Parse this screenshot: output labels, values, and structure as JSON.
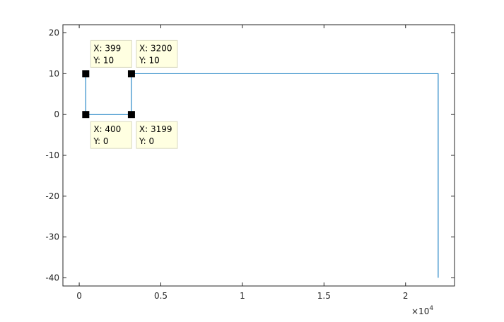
{
  "chart_data": {
    "type": "line",
    "title": "",
    "xlabel": "",
    "ylabel": "",
    "xlim": [
      -1000,
      23000
    ],
    "ylim": [
      -42,
      22
    ],
    "x_exponent_label": "×10",
    "x_exponent_power": "4",
    "x_ticks": [
      {
        "value": 0,
        "label": "0"
      },
      {
        "value": 5000,
        "label": "0.5"
      },
      {
        "value": 10000,
        "label": "1"
      },
      {
        "value": 15000,
        "label": "1.5"
      },
      {
        "value": 20000,
        "label": "2"
      }
    ],
    "y_ticks": [
      {
        "value": 20,
        "label": "20"
      },
      {
        "value": 10,
        "label": "10"
      },
      {
        "value": 0,
        "label": "0"
      },
      {
        "value": -10,
        "label": "-10"
      },
      {
        "value": -20,
        "label": "-20"
      },
      {
        "value": -30,
        "label": "-30"
      },
      {
        "value": -40,
        "label": "-40"
      }
    ],
    "grid": false,
    "line_color": "#0072bd",
    "series": [
      {
        "x": [
          399,
          400,
          3199,
          3200,
          22000,
          22000
        ],
        "y": [
          10,
          0,
          0,
          10,
          10,
          -40
        ]
      }
    ],
    "datatips": [
      {
        "x": 399,
        "y": 10,
        "x_text": "X: 399",
        "y_text": "Y: 10",
        "placement": "above-right"
      },
      {
        "x": 3200,
        "y": 10,
        "x_text": "X: 3200",
        "y_text": "Y: 10",
        "placement": "above-right"
      },
      {
        "x": 400,
        "y": 0,
        "x_text": "X: 400",
        "y_text": "Y: 0",
        "placement": "below-right"
      },
      {
        "x": 3199,
        "y": 0,
        "x_text": "X: 3199",
        "y_text": "Y: 0",
        "placement": "below-right"
      }
    ]
  }
}
